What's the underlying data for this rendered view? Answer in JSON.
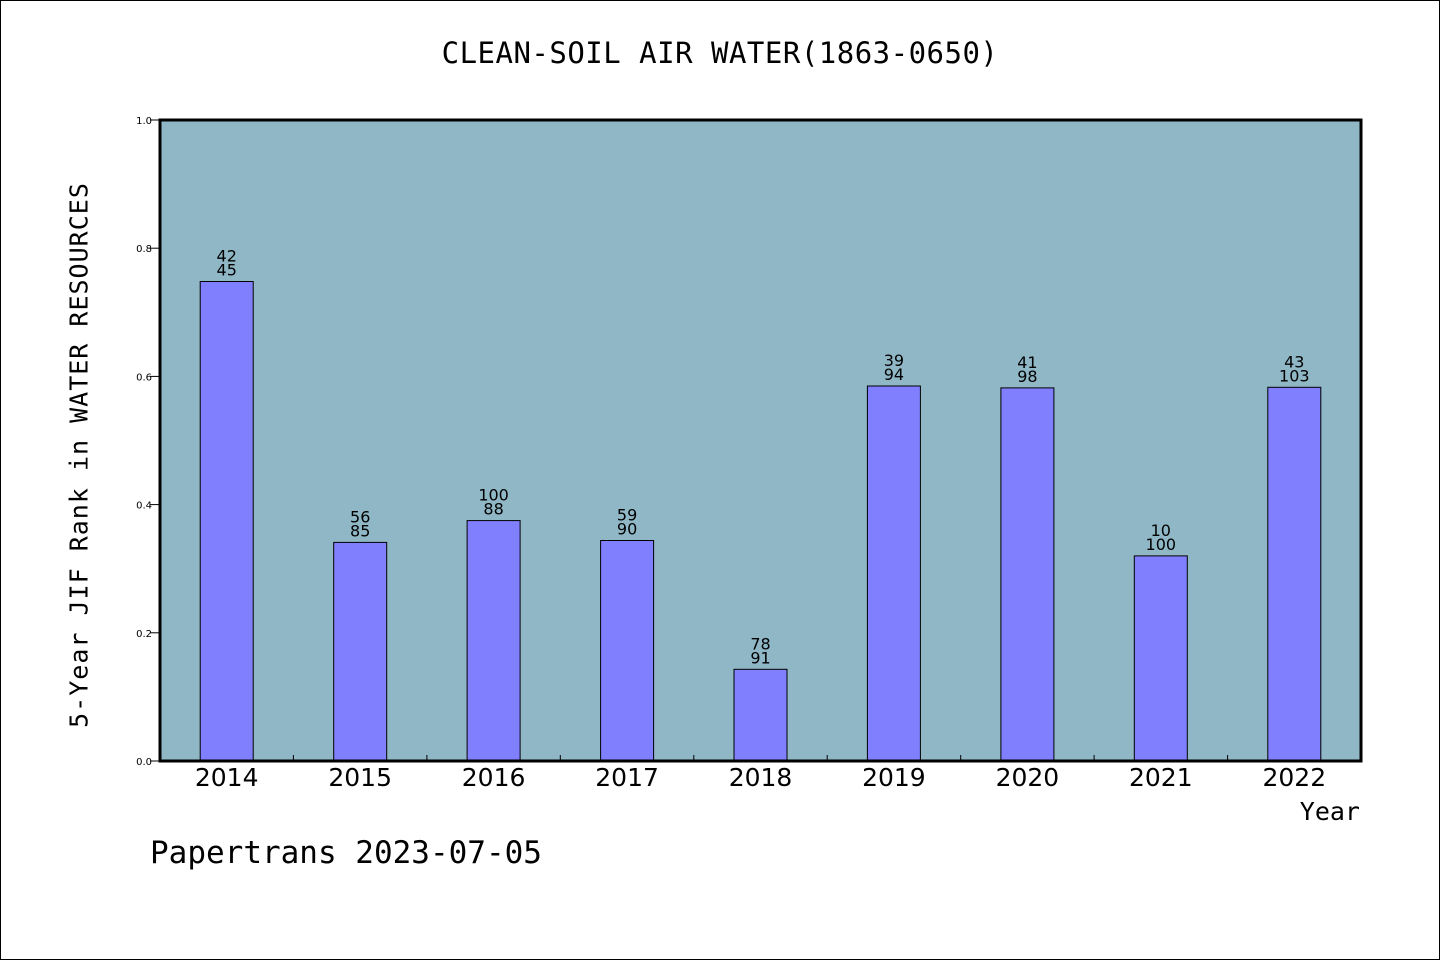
{
  "title": "CLEAN-SOIL AIR WATER(1863-0650)",
  "footer": "Papertrans 2023-07-05",
  "colors": {
    "plot_background": "#8fb7c6",
    "bar_fill": "#8080ff",
    "bar_stroke": "#000000"
  },
  "chart_data": {
    "type": "bar",
    "xlabel": "Year",
    "ylabel": "5-Year JIF Rank in WATER RESOURCES",
    "ylim": [
      0.0,
      1.0
    ],
    "yticks": [
      "0.0",
      "0.2",
      "0.4",
      "0.6",
      "0.8",
      "1.0"
    ],
    "grid": false,
    "categories": [
      "2014",
      "2015",
      "2016",
      "2017",
      "2018",
      "2019",
      "2020",
      "2021",
      "2022"
    ],
    "values": [
      0.748,
      0.341,
      0.375,
      0.344,
      0.143,
      0.585,
      0.582,
      0.32,
      0.583
    ],
    "labels_top": [
      "42",
      "56",
      "100",
      "59",
      "78",
      "39",
      "41",
      "10",
      "43"
    ],
    "labels_bottom": [
      "45",
      "85",
      "88",
      "90",
      "91",
      "94",
      "98",
      "100",
      "103"
    ]
  }
}
